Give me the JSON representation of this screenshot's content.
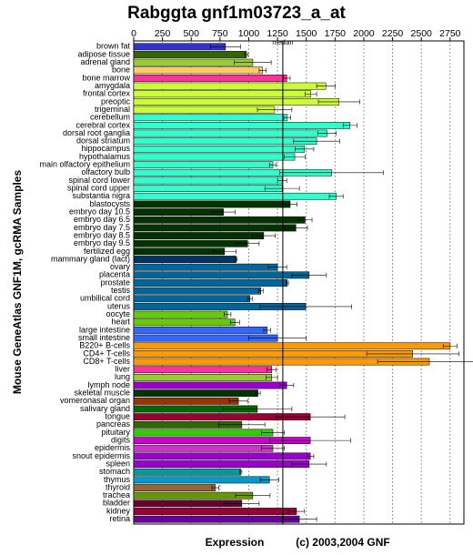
{
  "chart_data": {
    "type": "bar",
    "orientation": "horizontal",
    "title": "Rabggta gnf1m03723_a_at",
    "xlabel": "Expression",
    "ylabel": "Mouse GeneAtlas GNF1M, gcRMA Samples",
    "credit": "(c) 2003,2004 GNF",
    "categories": [
      "brown fat",
      "adipose tissue",
      "adrenal gland",
      "bone",
      "bone marrow",
      "amygdala",
      "frontal cortex",
      "preoptic",
      "trigeminal",
      "cerebellum",
      "cerebral cortex",
      "dorsal root ganglia",
      "dorsal striatum",
      "hippocampus",
      "hypothalamus",
      "main olfactory epithelium",
      "olfactory bulb",
      "spinal cord lower",
      "spinal cord upper",
      "substantia nigra",
      "blastocysts",
      "embryo day 10.5",
      "embryo day 6.5",
      "embryo day 7.5",
      "embryo day 8.5",
      "embryo day 9.5",
      "fertilized egg",
      "mammary gland (lact)",
      "ovary",
      "placenta",
      "prostate",
      "testis",
      "umbilical cord",
      "uterus",
      "oocyte",
      "heart",
      "large intestine",
      "small intestine",
      "B220+ B-cells",
      "CD4+ T-cells",
      "CD8+ T-cells",
      "liver",
      "lung",
      "lymph node",
      "skeletal muscle",
      "vomeronasal organ",
      "salivary gland",
      "tongue",
      "pancreas",
      "pituitary",
      "digits",
      "epidermis",
      "snout epidermis",
      "spleen",
      "stomach",
      "thymus",
      "thyroid",
      "trachea",
      "bladder",
      "kidney",
      "retina"
    ],
    "values": [
      798,
      980,
      1035,
      1120,
      1330,
      1670,
      1540,
      1785,
      1225,
      1335,
      1880,
      1680,
      1590,
      1485,
      1400,
      1210,
      1720,
      1290,
      1290,
      1760,
      1360,
      780,
      1490,
      1410,
      1130,
      990,
      790,
      890,
      1250,
      1525,
      1335,
      1105,
      1010,
      1495,
      815,
      880,
      1160,
      1250,
      2750,
      2425,
      2570,
      1200,
      1200,
      1330,
      1080,
      910,
      1075,
      1535,
      940,
      1210,
      1535,
      1210,
      1535,
      1525,
      930,
      1180,
      710,
      1035,
      940,
      1415,
      1440
    ],
    "errors": [
      130,
      15,
      160,
      30,
      30,
      80,
      50,
      180,
      150,
      30,
      60,
      80,
      200,
      80,
      90,
      30,
      450,
      40,
      150,
      60,
      60,
      100,
      60,
      100,
      100,
      100,
      100,
      10,
      80,
      150,
      10,
      20,
      20,
      400,
      30,
      40,
      30,
      250,
      60,
      400,
      450,
      40,
      50,
      60,
      20,
      80,
      300,
      300,
      200,
      100,
      350,
      100,
      30,
      150,
      10,
      80,
      30,
      150,
      150,
      70,
      150
    ],
    "colors": [
      "#3333cc",
      "#336600",
      "#99cc33",
      "#ffcc66",
      "#ff3399",
      "#ccff33",
      "#ccff33",
      "#ccff33",
      "#ccff33",
      "#33ffcc",
      "#33ffcc",
      "#33ffcc",
      "#33ffcc",
      "#33ffcc",
      "#33ffcc",
      "#33ffcc",
      "#33ffcc",
      "#33ffcc",
      "#33ffcc",
      "#33ffcc",
      "#003300",
      "#003300",
      "#003300",
      "#003300",
      "#003300",
      "#003300",
      "#003300",
      "#003366",
      "#006699",
      "#006699",
      "#006699",
      "#006699",
      "#006699",
      "#006699",
      "#66cc00",
      "#66cc00",
      "#3366ff",
      "#3366ff",
      "#ff9900",
      "#ff9900",
      "#ff9900",
      "#ff3399",
      "#99cc33",
      "#9900cc",
      "#003300",
      "#993300",
      "#006600",
      "#990033",
      "#336600",
      "#33cc00",
      "#cc00cc",
      "#cc33cc",
      "#9900cc",
      "#9900cc",
      "#009999",
      "#0099cc",
      "#996633",
      "#669900",
      "#660033",
      "#990033",
      "#660099"
    ],
    "median": {
      "value": 1296,
      "label": "median"
    },
    "xlim": [
      0,
      2870
    ],
    "xticks": [
      0,
      250,
      500,
      750,
      1000,
      1250,
      1500,
      1750,
      2000,
      2250,
      2500,
      2750
    ],
    "grid": true
  }
}
